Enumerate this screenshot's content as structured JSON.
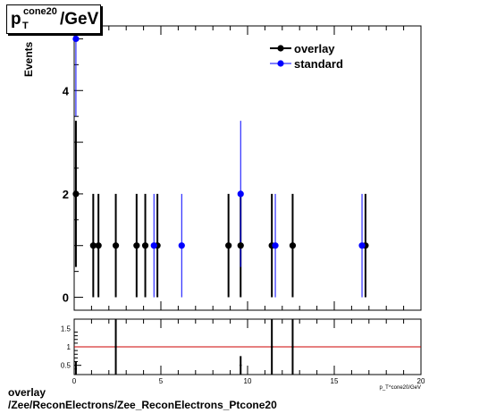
{
  "title": {
    "base": "p",
    "subscript": "T",
    "superscript": "cone20",
    "unit": "/GeV"
  },
  "caption": {
    "line1": "overlay",
    "line2": "/Zee/ReconElectrons/Zee_ReconElectrons_Ptcone20"
  },
  "colors": {
    "overlay": "#000000",
    "standard": "#0000ff",
    "ratio_line": "#cc0000"
  },
  "chart_data": [
    {
      "type": "scatter",
      "title": "",
      "ylabel": "Events",
      "xlabel": "",
      "xlim": [
        0,
        20
      ],
      "ylim": [
        -0.25,
        5.25
      ],
      "y_ticks": [
        0,
        2,
        4
      ],
      "grid": false,
      "legend_position": "top-right",
      "series": [
        {
          "name": "overlay",
          "color": "#000000",
          "x": [
            0.1,
            1.1,
            1.4,
            2.4,
            3.6,
            4.1,
            4.8,
            8.9,
            9.6,
            11.4,
            12.6,
            16.8
          ],
          "y": [
            2,
            1,
            1,
            1,
            1,
            1,
            1,
            1,
            1,
            1,
            1,
            1
          ],
          "yerr": [
            1.414,
            1,
            1,
            1,
            1,
            1,
            1,
            1,
            1,
            1,
            1,
            1
          ]
        },
        {
          "name": "standard",
          "color": "#0000ff",
          "x": [
            0.1,
            4.6,
            6.2,
            9.6,
            11.6,
            16.6
          ],
          "y": [
            5,
            1,
            1,
            2,
            1,
            1
          ],
          "yerr": [
            1.5,
            1,
            1,
            1.414,
            1,
            1
          ]
        }
      ]
    },
    {
      "type": "scatter",
      "title": "",
      "xlabel": "p_T^cone20/GeV",
      "ylabel": "",
      "xlim": [
        0,
        20
      ],
      "ylim": [
        0.25,
        1.75
      ],
      "x_ticks": [
        0,
        5,
        10,
        15,
        20
      ],
      "y_ticks": [
        0.5,
        1,
        1.5
      ],
      "reference_line": 1,
      "series": [
        {
          "name": "ratio",
          "color": "#000000",
          "x": [
            0.1,
            2.4,
            9.6,
            11.4,
            12.6
          ],
          "y": [
            0.4,
            1,
            0.5,
            1,
            1
          ],
          "yerr": [
            0.2,
            1.4,
            0.25,
            1.4,
            1.4
          ]
        }
      ]
    }
  ]
}
